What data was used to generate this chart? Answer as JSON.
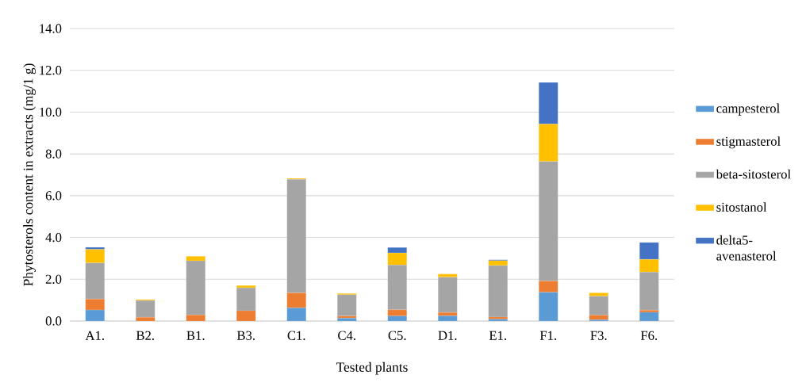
{
  "chart_data": {
    "type": "bar",
    "stacked": true,
    "xlabel": "Tested plants",
    "ylabel": "Phytosterols content in extracts (mg/1 g)",
    "categories": [
      "A1.",
      "B2.",
      "B1.",
      "B3.",
      "C1.",
      "C4.",
      "C5.",
      "D1.",
      "E1.",
      "F1.",
      "F3.",
      "F6."
    ],
    "ylim": [
      0,
      14
    ],
    "yticks": [
      {
        "value": 0,
        "label": "0.0"
      },
      {
        "value": 2,
        "label": "2.0"
      },
      {
        "value": 4,
        "label": "4.0"
      },
      {
        "value": 6,
        "label": "6.0"
      },
      {
        "value": 8,
        "label": "8.0"
      },
      {
        "value": 10,
        "label": "10.0"
      },
      {
        "value": 12,
        "label": "12.0"
      },
      {
        "value": 14,
        "label": "14.0"
      }
    ],
    "grid": "y",
    "legend": "right",
    "series": [
      {
        "name": "campesterol",
        "color": "#5b9bd5",
        "values": [
          0.53,
          null,
          0.0,
          0.0,
          0.63,
          0.14,
          0.24,
          0.25,
          0.09,
          1.38,
          0.06,
          0.42
        ]
      },
      {
        "name": "stigmasterol",
        "color": "#ed7d31",
        "values": [
          0.52,
          0.18,
          0.29,
          0.49,
          0.72,
          0.1,
          0.3,
          0.16,
          0.1,
          0.54,
          0.22,
          0.1
        ]
      },
      {
        "name": "beta-sitosterol",
        "color": "#a5a5a5",
        "values": [
          1.73,
          0.8,
          2.59,
          1.1,
          5.43,
          1.02,
          2.14,
          1.69,
          2.47,
          5.72,
          0.91,
          1.82
        ]
      },
      {
        "name": "sitostanol",
        "color": "#ffc000",
        "values": [
          0.65,
          0.05,
          0.22,
          0.11,
          0.05,
          0.06,
          0.58,
          0.15,
          0.23,
          1.79,
          0.16,
          0.61
        ]
      },
      {
        "name": "delta5-avenasterol",
        "color": "#4472c4",
        "values": [
          0.1,
          0.0,
          0.0,
          0.0,
          0.0,
          0.0,
          0.26,
          0.0,
          0.04,
          1.99,
          0.0,
          0.81
        ]
      }
    ]
  }
}
